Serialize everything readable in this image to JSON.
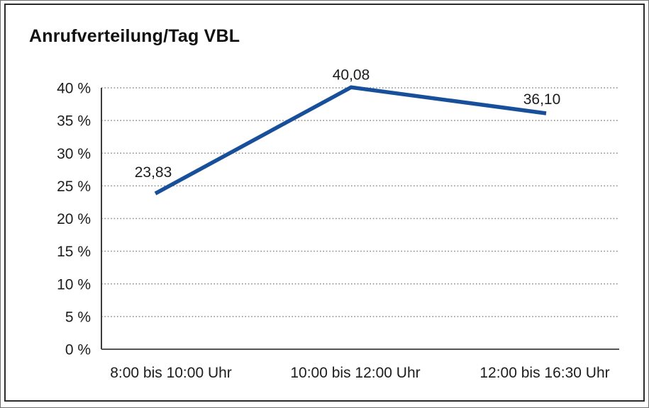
{
  "title": "Anrufverteilung/Tag VBL",
  "chart_data": {
    "type": "line",
    "title": "Anrufverteilung/Tag VBL",
    "categories": [
      "8:00 bis 10:00 Uhr",
      "10:00 bis 12:00 Uhr",
      "12:00 bis 16:30 Uhr"
    ],
    "series": [
      {
        "name": "Anrufverteilung",
        "values": [
          23.83,
          40.08,
          36.1
        ]
      }
    ],
    "value_labels": [
      "23,83",
      "40,08",
      "36,10"
    ],
    "y_ticks": [
      0,
      5,
      10,
      15,
      20,
      25,
      30,
      35,
      40
    ],
    "y_tick_labels": [
      "0 %",
      "5 %",
      "10 %",
      "15 %",
      "20 %",
      "25 %",
      "30 %",
      "35 %",
      "40 %"
    ],
    "ylim": [
      0,
      40
    ],
    "xlabel": "",
    "ylabel": "",
    "grid": "horizontal-dotted",
    "legend": "none",
    "colors": {
      "line": "#174f9b",
      "grid": "#8a8a8a",
      "axis": "#3c3c3c",
      "text": "#1c1c1c",
      "frame": "#2a2a2a",
      "background": "#ffffff"
    }
  }
}
